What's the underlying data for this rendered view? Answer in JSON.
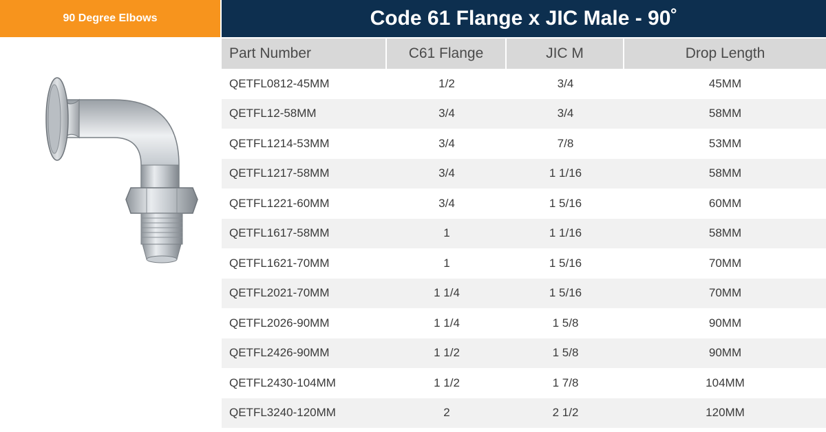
{
  "category_tab": {
    "label": "90 Degree Elbows"
  },
  "title": "Code 61 Flange x JIC Male - 90˚",
  "product_image": {
    "icon": "elbow-fitting-icon"
  },
  "table": {
    "headers": [
      "Part Number",
      "C61 Flange",
      "JIC M",
      "Drop Length"
    ],
    "rows": [
      [
        "QETFL0812-45MM",
        "1/2",
        "3/4",
        "45MM"
      ],
      [
        "QETFL12-58MM",
        "3/4",
        "3/4",
        "58MM"
      ],
      [
        "QETFL1214-53MM",
        "3/4",
        "7/8",
        "53MM"
      ],
      [
        "QETFL1217-58MM",
        "3/4",
        "1 1/16",
        "58MM"
      ],
      [
        "QETFL1221-60MM",
        "3/4",
        "1 5/16",
        "60MM"
      ],
      [
        "QETFL1617-58MM",
        "1",
        "1 1/16",
        "58MM"
      ],
      [
        "QETFL1621-70MM",
        "1",
        "1 5/16",
        "70MM"
      ],
      [
        "QETFL2021-70MM",
        "1 1/4",
        "1 5/16",
        "70MM"
      ],
      [
        "QETFL2026-90MM",
        "1 1/4",
        "1 5/8",
        "90MM"
      ],
      [
        "QETFL2426-90MM",
        "1 1/2",
        "1 5/8",
        "90MM"
      ],
      [
        "QETFL2430-104MM",
        "1 1/2",
        "1 7/8",
        "104MM"
      ],
      [
        "QETFL3240-120MM",
        "2",
        "2 1/2",
        "120MM"
      ]
    ]
  },
  "colors": {
    "accent_orange": "#f7941d",
    "title_navy": "#0d2f4f",
    "header_gray": "#d8d8d8",
    "stripe_gray": "#f1f1f1"
  }
}
